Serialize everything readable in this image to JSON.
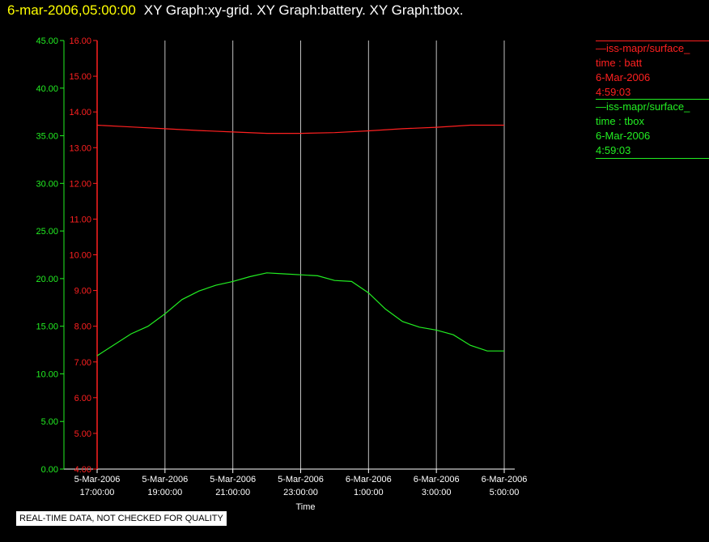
{
  "header": {
    "timestamp": "6-mar-2006,05:00:00",
    "titles": "XY Graph:xy-grid.  XY Graph:battery.  XY Graph:tbox."
  },
  "legend": {
    "batt": {
      "name": "iss-mapr/surface_",
      "desc": "time : batt",
      "date": "6-Mar-2006",
      "time": "4:59:03"
    },
    "tbox": {
      "name": "iss-mapr/surface_",
      "desc": "time : tbox",
      "date": "6-Mar-2006",
      "time": "4:59:03"
    }
  },
  "footer": "REAL-TIME DATA, NOT CHECKED FOR QUALITY",
  "colors": {
    "batt": "#ff2020",
    "tbox": "#22ee22",
    "grid": "#c0c0c0",
    "axis": "#ffffff"
  },
  "chart_data": {
    "type": "line",
    "xlabel": "Time",
    "x_ticks": [
      {
        "hours": 0,
        "line1": "5-Mar-2006",
        "line2": "17:00:00"
      },
      {
        "hours": 2,
        "line1": "5-Mar-2006",
        "line2": "19:00:00"
      },
      {
        "hours": 4,
        "line1": "5-Mar-2006",
        "line2": "21:00:00"
      },
      {
        "hours": 6,
        "line1": "5-Mar-2006",
        "line2": "23:00:00"
      },
      {
        "hours": 8,
        "line1": "6-Mar-2006",
        "line2": "1:00:00"
      },
      {
        "hours": 10,
        "line1": "6-Mar-2006",
        "line2": "3:00:00"
      },
      {
        "hours": 12,
        "line1": "6-Mar-2006",
        "line2": "5:00:00"
      }
    ],
    "xlim_hours": [
      0,
      12
    ],
    "y_left": {
      "ticks": [
        0,
        5,
        10,
        15,
        20,
        25,
        30,
        35,
        40,
        45
      ],
      "tick_labels": [
        "0.00",
        "5.00",
        "10.00",
        "15.00",
        "20.00",
        "25.00",
        "30.00",
        "35.00",
        "40.00",
        "45.00"
      ],
      "ylim": [
        0,
        45
      ]
    },
    "y_right": {
      "ticks": [
        4,
        5,
        6,
        7,
        8,
        9,
        10,
        11,
        12,
        13,
        14,
        15,
        16
      ],
      "tick_labels": [
        "4.00",
        "5.00",
        "6.00",
        "7.00",
        "8.00",
        "9.00",
        "10.00",
        "11.00",
        "12.00",
        "13.00",
        "14.00",
        "15.00",
        "16.00"
      ],
      "ylim": [
        4,
        16
      ]
    },
    "series": [
      {
        "key": "batt",
        "axis": "right",
        "x": [
          0,
          1,
          2,
          3,
          4,
          5,
          6,
          7,
          8,
          9,
          10,
          11,
          12
        ],
        "y": [
          13.63,
          13.58,
          13.53,
          13.48,
          13.44,
          13.4,
          13.4,
          13.42,
          13.47,
          13.53,
          13.57,
          13.63,
          13.63
        ]
      },
      {
        "key": "tbox",
        "axis": "left",
        "x": [
          0,
          1,
          1.5,
          2,
          2.5,
          3,
          3.5,
          4,
          4.5,
          5,
          5.5,
          6,
          6.5,
          7,
          7.5,
          8,
          8.5,
          9,
          9.5,
          10,
          10.5,
          11,
          11.5,
          12
        ],
        "y": [
          11.9,
          14.2,
          15.0,
          16.3,
          17.8,
          18.7,
          19.3,
          19.7,
          20.2,
          20.6,
          20.5,
          20.4,
          20.3,
          19.8,
          19.7,
          18.5,
          16.8,
          15.5,
          14.9,
          14.6,
          14.1,
          13.0,
          12.4,
          12.4
        ]
      }
    ]
  }
}
